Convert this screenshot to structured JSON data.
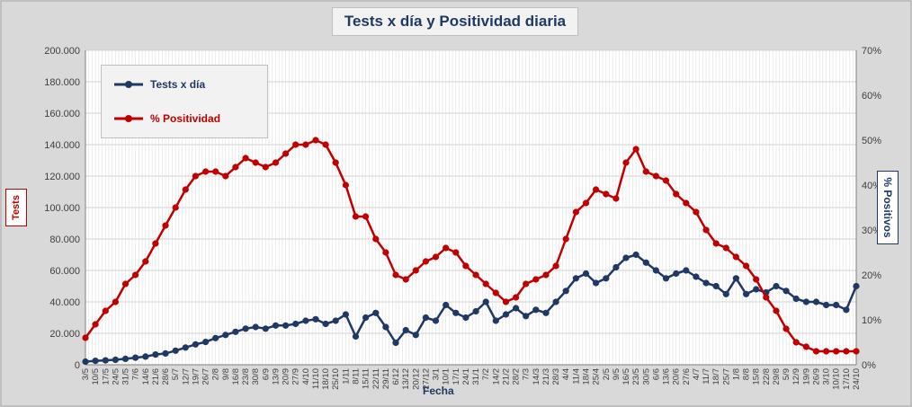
{
  "chart_data": {
    "type": "line",
    "title": "Tests x día y Positividad diaria",
    "xlabel": "Fecha",
    "ylabel_left": "Tests",
    "ylabel_right": "% Positivos",
    "y_left_ticks": [
      "0",
      "20.000",
      "40.000",
      "60.000",
      "80.000",
      "100.000",
      "120.000",
      "140.000",
      "160.000",
      "180.000",
      "200.000"
    ],
    "y_right_ticks": [
      "0%",
      "10%",
      "20%",
      "30%",
      "40%",
      "50%",
      "60%",
      "70%"
    ],
    "ylim_left": [
      0,
      200000
    ],
    "ylim_right": [
      0,
      70
    ],
    "x_ticks": [
      "3/5",
      "10/5",
      "17/5",
      "24/5",
      "31/5",
      "7/6",
      "14/6",
      "21/6",
      "28/6",
      "5/7",
      "12/7",
      "19/7",
      "26/7",
      "2/8",
      "9/8",
      "16/8",
      "23/8",
      "30/8",
      "6/9",
      "13/9",
      "20/9",
      "27/9",
      "4/10",
      "11/10",
      "18/10",
      "25/10",
      "1/11",
      "8/11",
      "15/11",
      "22/11",
      "29/11",
      "6/12",
      "13/12",
      "20/12",
      "27/12",
      "3/1",
      "10/1",
      "17/1",
      "24/1",
      "31/1",
      "7/2",
      "14/2",
      "21/2",
      "28/2",
      "7/3",
      "14/3",
      "21/3",
      "28/3",
      "4/4",
      "11/4",
      "18/4",
      "25/4",
      "2/5",
      "9/5",
      "16/5",
      "23/5",
      "30/5",
      "6/6",
      "13/6",
      "20/6",
      "27/6",
      "4/7",
      "11/7",
      "18/7",
      "25/7",
      "1/8",
      "8/8",
      "15/8",
      "22/8",
      "29/8",
      "5/9",
      "12/9",
      "19/9",
      "26/9",
      "3/10",
      "10/10",
      "17/10",
      "24/10"
    ],
    "grid": true,
    "legend_placement": "top-left",
    "series": [
      {
        "name": "Tests x día",
        "axis": "left",
        "color": "#1f3864",
        "values": [
          2000,
          2500,
          2800,
          3200,
          3800,
          4500,
          5200,
          6500,
          7200,
          9000,
          11000,
          13000,
          14500,
          17000,
          19000,
          21000,
          23000,
          24000,
          23000,
          25000,
          25000,
          26000,
          28000,
          29000,
          26000,
          28000,
          32000,
          18000,
          30000,
          33000,
          24000,
          14000,
          22000,
          19000,
          30000,
          28000,
          38000,
          33000,
          30000,
          34000,
          40000,
          28000,
          32000,
          36000,
          31000,
          35000,
          33000,
          40000,
          47000,
          55000,
          58000,
          52000,
          55000,
          62000,
          68000,
          70000,
          65000,
          60000,
          55000,
          58000,
          60000,
          56000,
          52000,
          50000,
          45000,
          55000,
          45000,
          48000,
          46000,
          50000,
          47000,
          42000,
          40000,
          40000,
          38000,
          38000,
          35000,
          50000
        ]
      },
      {
        "name": "% Positividad",
        "axis": "right",
        "color": "#c00000",
        "values": [
          6,
          9,
          12,
          14,
          18,
          20,
          23,
          27,
          31,
          35,
          39,
          42,
          43,
          43,
          42,
          44,
          46,
          45,
          44,
          45,
          47,
          49,
          49,
          50,
          49,
          45,
          40,
          33,
          33,
          28,
          25,
          20,
          19,
          21,
          23,
          24,
          26,
          25,
          22,
          20,
          18,
          16,
          14,
          15,
          18,
          19,
          20,
          22,
          28,
          34,
          36,
          39,
          38,
          37,
          45,
          48,
          43,
          42,
          41,
          38,
          36,
          34,
          30,
          27,
          26,
          24,
          22,
          19,
          15,
          12,
          8,
          5,
          4,
          3,
          3,
          3,
          3,
          3
        ]
      }
    ]
  }
}
